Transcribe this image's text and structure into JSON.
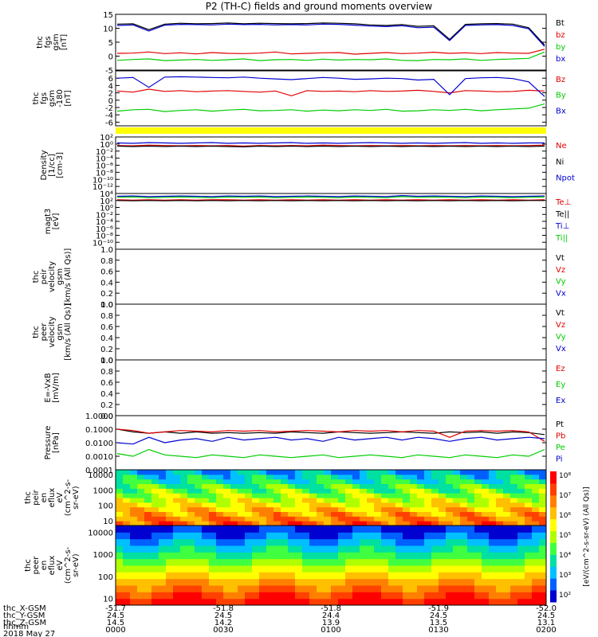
{
  "title": "P2 (TH-C) fields and ground moments overview",
  "colors": {
    "black": "#000000",
    "red": "#e00000",
    "green": "#00cc00",
    "blue": "#0000d0",
    "yellow": "#ffff00"
  },
  "chart_data": [
    {
      "type": "line",
      "name": "fgs",
      "ylabel_lines": [
        "thc",
        "fgs",
        "gsm",
        "[nT]"
      ],
      "ylim": [
        -5,
        15
      ],
      "yticks": [
        "15",
        "10",
        "5",
        "0",
        "-5"
      ],
      "ytick_vals": [
        15,
        10,
        5,
        0,
        -5
      ],
      "series": [
        {
          "name": "Bt",
          "color": "#000000",
          "values": [
            11.5,
            11.6,
            9.5,
            11.5,
            11.8,
            11.6,
            11.7,
            11.9,
            11.6,
            11.8,
            11.7,
            11.6,
            11.7,
            11.9,
            11.8,
            11.6,
            11.2,
            11.0,
            11.3,
            10.7,
            10.9,
            6.0,
            11.4,
            11.6,
            11.7,
            11.5,
            10.2,
            4.0
          ]
        },
        {
          "name": "bz",
          "color": "#e00000",
          "values": [
            1.0,
            1.1,
            1.5,
            0.9,
            1.2,
            0.8,
            1.3,
            1.0,
            0.9,
            1.1,
            1.5,
            0.8,
            1.0,
            1.2,
            1.3,
            0.7,
            1.0,
            1.3,
            0.9,
            1.1,
            1.4,
            1.0,
            1.2,
            0.9,
            1.3,
            1.1,
            1.0,
            2.5
          ]
        },
        {
          "name": "by",
          "color": "#00cc00",
          "values": [
            -1.5,
            -1.2,
            -1.0,
            -1.6,
            -1.4,
            -1.2,
            -1.5,
            -1.3,
            -1.0,
            -1.6,
            -1.3,
            -1.2,
            -1.5,
            -1.1,
            -1.4,
            -1.2,
            -1.3,
            -1.0,
            -1.5,
            -1.6,
            -1.2,
            -1.3,
            -1.0,
            -1.5,
            -1.2,
            -1.0,
            -0.8,
            1.5
          ]
        },
        {
          "name": "bx",
          "color": "#0000d0",
          "values": [
            11.0,
            11.2,
            9.0,
            11.1,
            11.4,
            11.3,
            11.2,
            11.5,
            11.3,
            11.4,
            11.2,
            11.3,
            11.2,
            11.5,
            11.4,
            11.1,
            10.8,
            10.6,
            10.9,
            10.2,
            10.4,
            5.6,
            11.0,
            11.2,
            11.3,
            11.0,
            9.8,
            3.5
          ]
        }
      ]
    },
    {
      "type": "line",
      "name": "fgs-gse",
      "ylabel_lines": [
        "thc",
        "fgs",
        "gsm",
        "-180",
        "[nT]"
      ],
      "ylim": [
        -7,
        8
      ],
      "yticks": [
        "6",
        "4",
        "2",
        "0",
        "-2",
        "-4",
        "-6"
      ],
      "ytick_vals": [
        6,
        4,
        2,
        0,
        -2,
        -4,
        -6
      ],
      "series": [
        {
          "name": "Bz",
          "color": "#e00000",
          "values": [
            2.5,
            2.2,
            3.0,
            2.4,
            2.6,
            2.3,
            2.5,
            2.6,
            2.4,
            2.2,
            2.5,
            1.2,
            2.6,
            2.4,
            2.5,
            2.3,
            2.6,
            2.4,
            2.5,
            2.7,
            2.4,
            2.0,
            2.6,
            2.5,
            2.3,
            2.4,
            2.7,
            2.5
          ]
        },
        {
          "name": "By",
          "color": "#00cc00",
          "values": [
            -3.0,
            -2.6,
            -2.5,
            -3.1,
            -2.8,
            -2.6,
            -3.0,
            -2.7,
            -2.5,
            -2.9,
            -2.8,
            -2.6,
            -3.0,
            -2.7,
            -2.9,
            -2.6,
            -2.8,
            -2.5,
            -3.0,
            -2.9,
            -2.6,
            -2.8,
            -2.5,
            -2.9,
            -2.6,
            -2.4,
            -2.2,
            -1.0
          ]
        },
        {
          "name": "Bx",
          "color": "#0000d0",
          "values": [
            6.0,
            6.2,
            3.5,
            6.3,
            6.4,
            6.3,
            6.2,
            6.1,
            6.3,
            6.0,
            5.8,
            5.6,
            5.9,
            6.2,
            6.0,
            5.7,
            5.8,
            6.0,
            5.9,
            5.5,
            5.7,
            1.5,
            5.9,
            6.1,
            6.2,
            5.9,
            5.0,
            1.0
          ]
        }
      ]
    },
    {
      "type": "line",
      "name": "density",
      "log": true,
      "ylabel_lines": [
        "Density",
        "[1/cc]",
        "[cm-3]"
      ],
      "ylim_exp": [
        -14,
        2
      ],
      "yticks": [
        "10²",
        "10⁰",
        "10⁻²",
        "10⁻⁴",
        "10⁻⁶",
        "10⁻⁸",
        "10⁻¹⁰",
        "10⁻¹²"
      ],
      "ytick_vals": [
        2,
        0,
        -2,
        -4,
        -6,
        -8,
        -10,
        -12
      ],
      "series": [
        {
          "name": "Ne",
          "color": "#e00000",
          "values": [
            -0.4,
            -0.5,
            -0.3,
            -0.4,
            -0.5,
            -0.4,
            -0.5,
            -0.4,
            -0.6,
            -0.4,
            -0.5,
            -0.4,
            -0.5,
            -0.3,
            -0.4,
            -0.5,
            -0.4,
            -0.5,
            -0.4,
            -0.5,
            -0.4,
            -0.5,
            -0.4,
            -0.5,
            -0.4,
            -0.5,
            -0.4,
            -0.3
          ]
        },
        {
          "name": "Ni",
          "color": "#000000",
          "values": [
            -0.6,
            -0.7,
            -0.6,
            -0.7,
            -0.6,
            -0.7,
            -0.6,
            -0.7,
            -0.8,
            -0.6,
            -0.7,
            -0.6,
            -0.7,
            -0.6,
            -0.7,
            -0.6,
            -0.7,
            -0.6,
            -0.7,
            -0.6,
            -0.7,
            -0.6,
            -0.7,
            -0.6,
            -0.7,
            -0.6,
            -0.7,
            -0.6
          ]
        },
        {
          "name": "Npot",
          "color": "#0000d0",
          "values": [
            0.3,
            0.2,
            0.4,
            0.3,
            0.2,
            0.3,
            0.4,
            0.2,
            0.3,
            0.2,
            0.3,
            0.4,
            0.2,
            0.3,
            0.2,
            0.3,
            0.4,
            0.3,
            0.2,
            0.3,
            0.2,
            0.3,
            0.4,
            0.2,
            0.3,
            0.2,
            0.3,
            0.3
          ]
        }
      ],
      "legend": [
        "Ne",
        "Ni",
        "Npot"
      ]
    },
    {
      "type": "line",
      "name": "temperature",
      "log": true,
      "ylabel_lines": [
        "magt3",
        "[eV]"
      ],
      "ylim_exp": [
        -12,
        4
      ],
      "yticks": [
        "10⁴",
        "10²",
        "10⁰",
        "10⁻²",
        "10⁻⁴",
        "10⁻⁶",
        "10⁻⁸",
        "10⁻¹⁰"
      ],
      "ytick_vals": [
        4,
        2,
        0,
        -2,
        -4,
        -6,
        -8,
        -10
      ],
      "series": [
        {
          "name": "Te⊥",
          "color": "#e00000",
          "values": [
            2.2,
            2.1,
            2.2,
            2.1,
            2.2,
            2.1,
            2.2,
            2.2,
            2.1,
            2.2,
            2.1,
            2.2,
            2.1,
            2.2,
            2.1,
            2.2,
            2.1,
            2.2,
            2.1,
            2.2,
            2.1,
            2.2,
            2.1,
            2.2,
            2.1,
            2.2,
            2.1,
            2.2
          ]
        },
        {
          "name": "Te||",
          "color": "#000000",
          "values": [
            2.0,
            1.9,
            2.0,
            1.9,
            2.0,
            1.9,
            2.0,
            1.9,
            2.0,
            1.9,
            2.0,
            1.9,
            2.0,
            1.9,
            2.0,
            1.9,
            2.0,
            1.9,
            2.0,
            1.9,
            2.0,
            1.9,
            2.0,
            1.9,
            2.0,
            1.9,
            2.0,
            2.0
          ]
        },
        {
          "name": "Ti⊥",
          "color": "#0000d0",
          "values": [
            3.2,
            3.3,
            3.1,
            3.2,
            3.3,
            3.2,
            3.1,
            3.3,
            3.2,
            3.3,
            3.1,
            3.2,
            3.3,
            3.2,
            3.1,
            3.3,
            3.2,
            3.1,
            3.4,
            3.2,
            3.3,
            3.2,
            3.1,
            3.3,
            3.2,
            3.1,
            3.2,
            3.3
          ]
        },
        {
          "name": "Ti||",
          "color": "#00cc00",
          "values": [
            2.9,
            3.0,
            2.8,
            2.9,
            3.0,
            2.9,
            2.8,
            3.0,
            2.9,
            3.0,
            2.8,
            2.9,
            3.0,
            2.9,
            2.8,
            3.0,
            2.9,
            2.8,
            3.1,
            2.9,
            3.0,
            2.9,
            2.8,
            3.0,
            2.9,
            2.8,
            2.9,
            3.0
          ]
        }
      ],
      "legend": [
        "Te⊥",
        "Te||",
        "Ti⊥",
        "Ti||"
      ]
    },
    {
      "type": "line",
      "name": "peir-velocity",
      "ylabel_lines": [
        "thc",
        "peir",
        "velocity",
        "gsm",
        "[km/s (All Qs)]"
      ],
      "ylim": [
        0,
        1
      ],
      "yticks": [
        "1.0",
        "0.8",
        "0.6",
        "0.4",
        "0.2",
        "0.0"
      ],
      "ytick_vals": [
        1,
        0.8,
        0.6,
        0.4,
        0.2,
        0
      ],
      "series": [],
      "legend": [
        "Vt",
        "Vz",
        "Vy",
        "Vx"
      ],
      "legend_colors": [
        "#000000",
        "#e00000",
        "#00cc00",
        "#0000d0"
      ]
    },
    {
      "type": "line",
      "name": "peer-velocity",
      "ylabel_lines": [
        "thc",
        "peer",
        "velocity",
        "gsm",
        "[km/s (All Qs)]"
      ],
      "ylim": [
        0,
        1
      ],
      "yticks": [
        "1.0",
        "0.8",
        "0.6",
        "0.4",
        "0.2",
        "0.0"
      ],
      "ytick_vals": [
        1,
        0.8,
        0.6,
        0.4,
        0.2,
        0
      ],
      "series": [],
      "legend": [
        "Vt",
        "Vz",
        "Vy",
        "Vx"
      ],
      "legend_colors": [
        "#000000",
        "#e00000",
        "#00cc00",
        "#0000d0"
      ]
    },
    {
      "type": "line",
      "name": "efield",
      "ylabel_lines": [
        "E=-VxB",
        "[mV/m]"
      ],
      "ylim": [
        0,
        1
      ],
      "yticks": [
        "1.0",
        "0.8",
        "0.6",
        "0.4",
        "0.2",
        "0.0"
      ],
      "ytick_vals": [
        1,
        0.8,
        0.6,
        0.4,
        0.2,
        0
      ],
      "series": [],
      "legend": [
        "Ez",
        "Ey",
        "Ex"
      ],
      "legend_colors": [
        "#e00000",
        "#00cc00",
        "#0000d0"
      ]
    },
    {
      "type": "line",
      "name": "pressure",
      "log": true,
      "ylabel_lines": [
        "Pressure",
        "[nPa]"
      ],
      "ylim_exp": [
        -4,
        0
      ],
      "yticks": [
        "1.0000",
        "0.1000",
        "0.0100",
        "0.0010",
        "0.0001"
      ],
      "ytick_vals": [
        0,
        -1,
        -2,
        -3,
        -4
      ],
      "series": [
        {
          "name": "Pt",
          "color": "#000000",
          "values": [
            -1.0,
            -1.2,
            -1.3,
            -1.2,
            -1.3,
            -1.2,
            -1.3,
            -1.25,
            -1.3,
            -1.25,
            -1.3,
            -1.2,
            -1.25,
            -1.3,
            -1.2,
            -1.25,
            -1.3,
            -1.25,
            -1.2,
            -1.25,
            -1.3,
            -1.2,
            -1.25,
            -1.2,
            -1.3,
            -1.2,
            -1.25,
            -1.4
          ]
        },
        {
          "name": "Pb",
          "color": "#e00000",
          "values": [
            -1.0,
            -1.1,
            -1.3,
            -1.2,
            -1.1,
            -1.15,
            -1.2,
            -1.1,
            -1.15,
            -1.1,
            -1.2,
            -1.15,
            -1.1,
            -1.15,
            -1.2,
            -1.1,
            -1.15,
            -1.1,
            -1.2,
            -1.1,
            -1.15,
            -1.6,
            -1.15,
            -1.1,
            -1.15,
            -1.1,
            -1.2,
            -1.9
          ]
        },
        {
          "name": "Pe",
          "color": "#00cc00",
          "values": [
            -2.8,
            -3.0,
            -2.5,
            -2.9,
            -3.0,
            -3.1,
            -2.9,
            -3.0,
            -3.1,
            -2.9,
            -3.0,
            -3.1,
            -3.0,
            -2.9,
            -3.1,
            -3.0,
            -2.9,
            -3.0,
            -3.1,
            -2.9,
            -3.0,
            -3.1,
            -2.9,
            -3.0,
            -3.1,
            -2.9,
            -3.0,
            -2.5
          ]
        },
        {
          "name": "Pi",
          "color": "#0000d0",
          "values": [
            -2.0,
            -2.1,
            -1.6,
            -2.0,
            -1.8,
            -1.7,
            -1.9,
            -1.6,
            -1.8,
            -1.7,
            -1.6,
            -1.8,
            -1.7,
            -1.9,
            -1.6,
            -1.8,
            -1.7,
            -1.6,
            -1.8,
            -1.6,
            -1.7,
            -1.9,
            -1.7,
            -1.6,
            -1.8,
            -1.7,
            -1.6,
            -1.7
          ]
        }
      ],
      "legend": [
        "Pt",
        "Pb",
        "Pe",
        "Pi"
      ]
    },
    {
      "type": "heatmap",
      "name": "peir-eflux",
      "ylabel_lines": [
        "thc",
        "peir",
        "en",
        "eflux",
        "eV",
        "(cm^2-s-",
        "sr-eV)"
      ],
      "yticks": [
        "10000",
        "1000",
        "100",
        "10"
      ],
      "ytick_vals": [
        4,
        3,
        2,
        1
      ],
      "colorbar_label": "[eV/(cm^2-s-sr-eV) (All Qs)]",
      "colorbar_ticks": [
        "10⁸",
        "10⁷",
        "10⁶",
        "10⁵",
        "10⁴",
        "10³",
        "10²"
      ]
    },
    {
      "type": "heatmap",
      "name": "peer-eflux",
      "ylabel_lines": [
        "thc",
        "peer",
        "en",
        "eflux",
        "eV",
        "(cm^2-s-",
        "sr-eV)"
      ],
      "yticks": [
        "10000",
        "1000",
        "100",
        "10"
      ],
      "ytick_vals": [
        4,
        3,
        2,
        1
      ],
      "colorbar_label": "[eV/(cm^2-s-sr-eV) (All Qs)]",
      "colorbar_ticks": [
        "10⁸",
        "10⁷",
        "10⁶",
        "10⁵",
        "10⁴",
        "10³",
        "10²"
      ]
    }
  ],
  "x_axis": {
    "row_labels": [
      "thc_X-GSM",
      "thc_Y-GSM",
      "thc_Z-GSM",
      "hhmm",
      "2018 May 27"
    ],
    "columns": [
      {
        "x": "-51.7",
        "y": "24.5",
        "z": "14.5",
        "t": "0000"
      },
      {
        "x": "-51.8",
        "y": "24.5",
        "z": "14.2",
        "t": "0030"
      },
      {
        "x": "-51.8",
        "y": "24.4",
        "z": "13.9",
        "t": "0100"
      },
      {
        "x": "-51.9",
        "y": "24.5",
        "z": "13.5",
        "t": "0130"
      },
      {
        "x": "-52.0",
        "y": "24.5",
        "z": "13.1",
        "t": "0200"
      }
    ]
  }
}
